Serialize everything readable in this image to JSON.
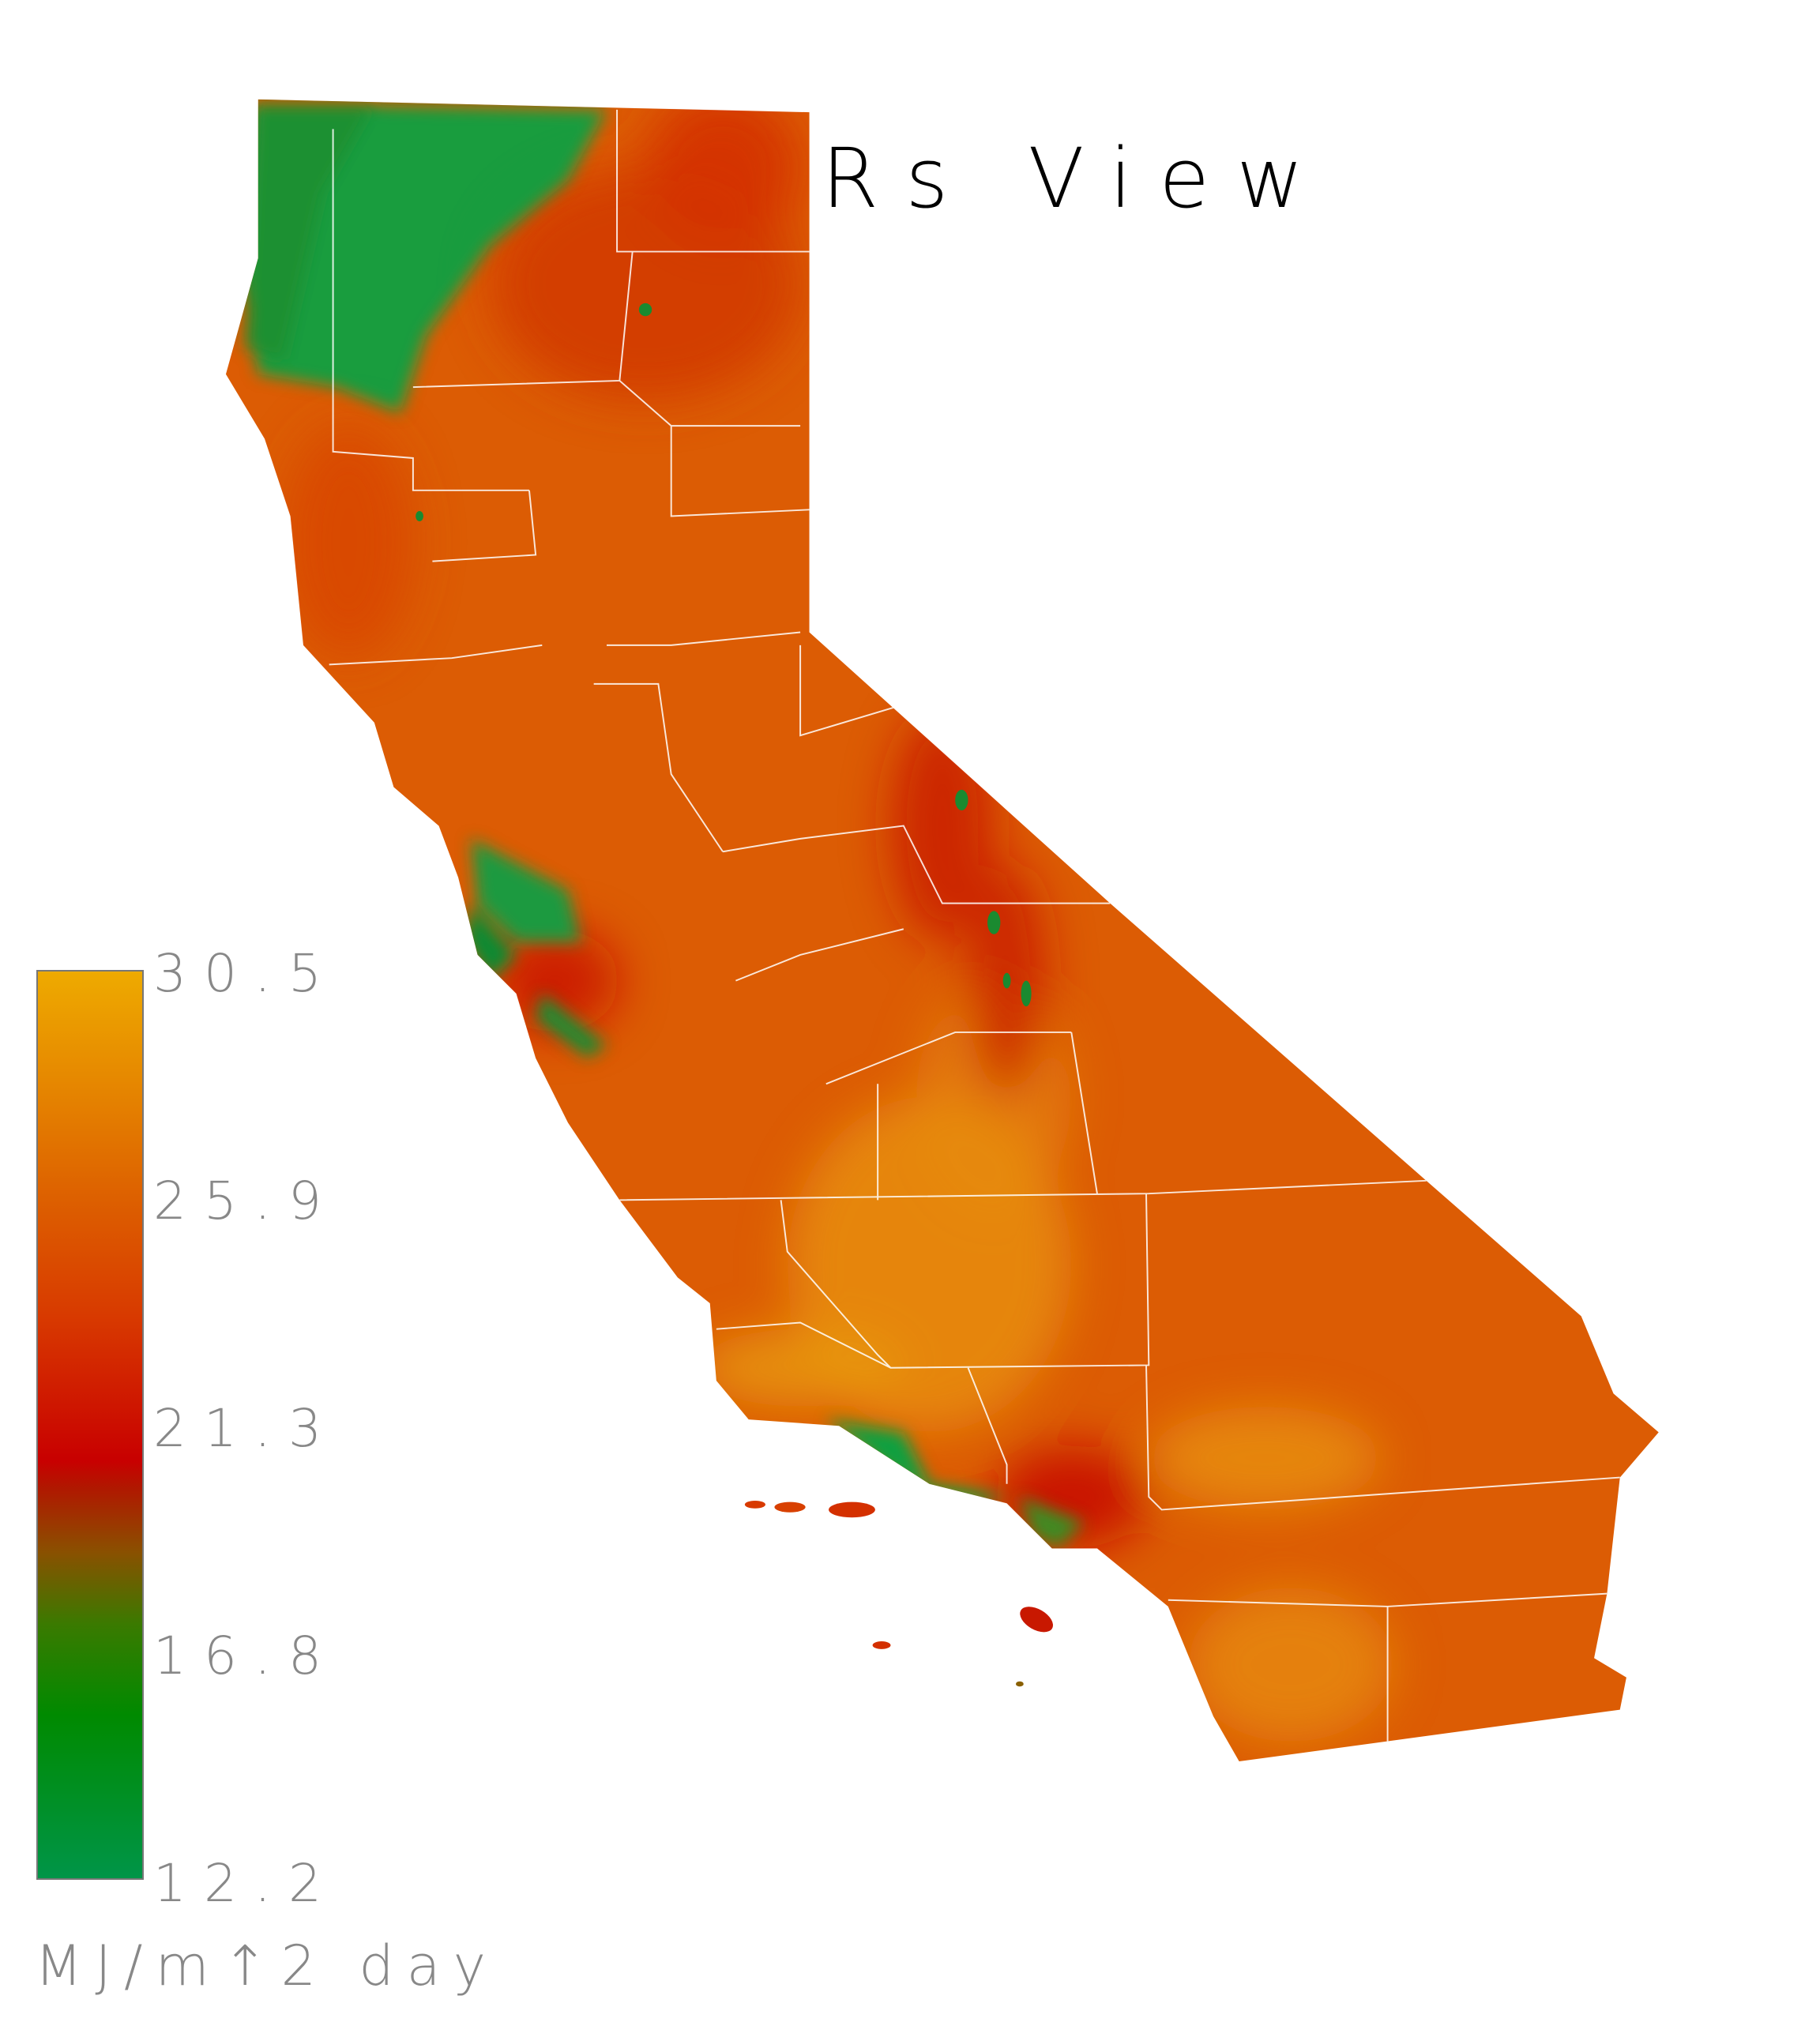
{
  "title": "Rs View",
  "chart_data": {
    "type": "heatmap",
    "title": "Rs View",
    "region": "California",
    "variable": "Rs",
    "colorbar": {
      "ticks": [
        "30.5",
        "25.9",
        "21.3",
        "16.8",
        "12.2"
      ],
      "min": 12.2,
      "max": 30.5,
      "unit": "MJ/m↑2 day",
      "colors": [
        "#009548",
        "#008a00",
        "#8a5000",
        "#c80000",
        "#dd6000",
        "#eeaa00"
      ]
    }
  }
}
